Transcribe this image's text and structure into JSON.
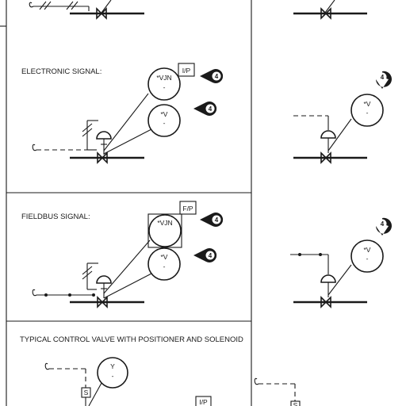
{
  "labels": {
    "electronic": "ELECTRONIC SIGNAL:",
    "fieldbus": "FIELDBUS SIGNAL:",
    "positioner_solenoid": "TYPICAL CONTROL VALVE WITH POSITIONER AND SOLENOID"
  },
  "electronic": {
    "transducer_tag": "*VJN",
    "transducer_sub": "-",
    "converter_box": "I/P",
    "valve_tag": "*V",
    "valve_sub": "-",
    "callout_1": "4",
    "callout_2": "4"
  },
  "fieldbus": {
    "transducer_tag": "*VJN",
    "converter_box": "F/P",
    "valve_tag": "*V",
    "valve_sub": "-",
    "callout_1": "4",
    "callout_2": "4"
  },
  "right_electronic": {
    "valve_tag": "*V",
    "valve_sub": "-",
    "callout": "4"
  },
  "right_fieldbus": {
    "valve_tag": "*V",
    "valve_sub": "-",
    "callout": "4"
  },
  "positioner": {
    "solenoid_tag": "Y",
    "solenoid_sub": "-",
    "solenoid_box": "S",
    "converter_box": "I/P",
    "right_box": "S"
  },
  "colors": {
    "ink": "#1a1a1a",
    "paper": "#ffffff"
  }
}
